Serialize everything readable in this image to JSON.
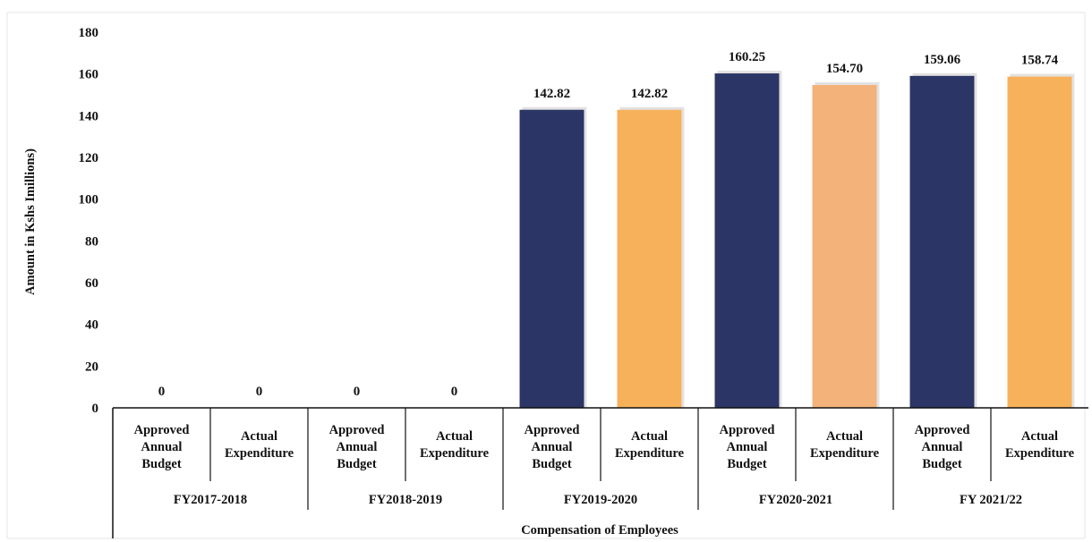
{
  "chart_data": {
    "type": "bar",
    "xlabel": "Compensation of Employees",
    "ylabel": "Amount in Kshs Imillions)",
    "ylim": [
      0,
      180
    ],
    "yticks": [
      0,
      20,
      40,
      60,
      80,
      100,
      120,
      140,
      160,
      180
    ],
    "groups": [
      {
        "label": "FY2017-2018",
        "bars": [
          {
            "category": [
              "Approved",
              "Annual",
              "Budget"
            ],
            "value": 0,
            "value_label": "0",
            "color": "#2b3566"
          },
          {
            "category": [
              "Actual",
              "Expenditure"
            ],
            "value": 0,
            "value_label": "0",
            "color": "#f6b15a"
          }
        ]
      },
      {
        "label": "FY2018-2019",
        "bars": [
          {
            "category": [
              "Approved",
              "Annual",
              "Budget"
            ],
            "value": 0,
            "value_label": "0",
            "color": "#2b3566"
          },
          {
            "category": [
              "Actual",
              "Expenditure"
            ],
            "value": 0,
            "value_label": "0",
            "color": "#f6b15a"
          }
        ]
      },
      {
        "label": "FY2019-2020",
        "bars": [
          {
            "category": [
              "Approved",
              "Annual",
              "Budget"
            ],
            "value": 142.82,
            "value_label": "142.82",
            "color": "#2b3566"
          },
          {
            "category": [
              "Actual",
              "Expenditure"
            ],
            "value": 142.82,
            "value_label": "142.82",
            "color": "#f6b15a"
          }
        ]
      },
      {
        "label": "FY2020-2021",
        "bars": [
          {
            "category": [
              "Approved",
              "Annual",
              "Budget"
            ],
            "value": 160.25,
            "value_label": "160.25",
            "color": "#2b3566"
          },
          {
            "category": [
              "Actual",
              "Expenditure"
            ],
            "value": 154.7,
            "value_label": "154.70",
            "color": "#f2b27a"
          }
        ]
      },
      {
        "label": "FY 2021/22",
        "bars": [
          {
            "category": [
              "Approved",
              "Annual",
              "Budget"
            ],
            "value": 159.06,
            "value_label": "159.06",
            "color": "#2b3566"
          },
          {
            "category": [
              "Actual",
              "Expenditure"
            ],
            "value": 158.74,
            "value_label": "158.74",
            "color": "#f6b15a"
          }
        ]
      }
    ]
  }
}
